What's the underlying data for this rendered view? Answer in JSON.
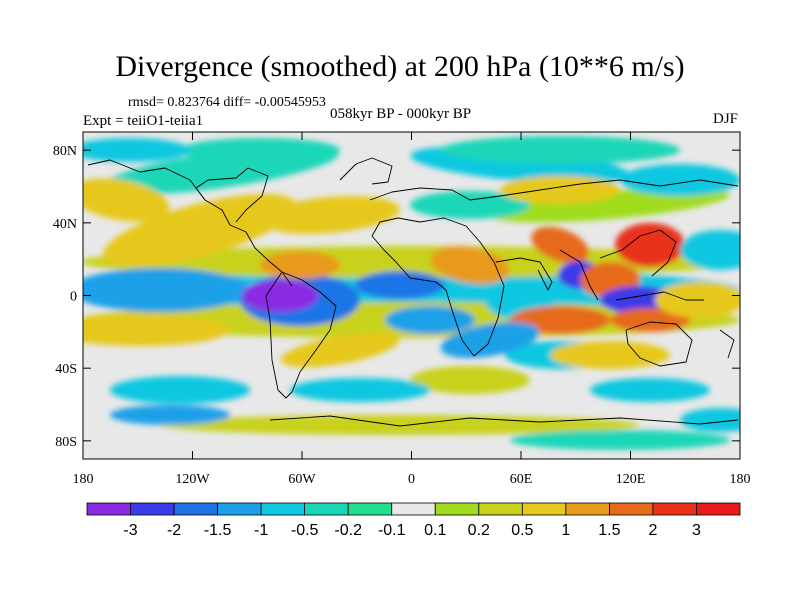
{
  "title": "Divergence (smoothed) at 200 hPa (10**6 m/s)",
  "stats": "rmsd= 0.823764 diff= -0.00545953",
  "experiment": "Expt = teiiO1-teiia1",
  "period": "058kyr BP - 000kyr BP",
  "season": "DJF",
  "map": {
    "projection": "cylindrical-equidistant",
    "lon_range": [
      -180,
      180
    ],
    "lat_range": [
      -90,
      90
    ],
    "lon_ticks": [
      {
        "value": -180,
        "label": "180"
      },
      {
        "value": -120,
        "label": "120W"
      },
      {
        "value": -60,
        "label": "60W"
      },
      {
        "value": 0,
        "label": "0"
      },
      {
        "value": 60,
        "label": "60E"
      },
      {
        "value": 120,
        "label": "120E"
      },
      {
        "value": 180,
        "label": "180"
      }
    ],
    "lat_ticks": [
      {
        "value": 80,
        "label": "80N"
      },
      {
        "value": 40,
        "label": "40N"
      },
      {
        "value": 0,
        "label": "0"
      },
      {
        "value": -40,
        "label": "40S"
      },
      {
        "value": -80,
        "label": "80S"
      }
    ]
  },
  "colorbar": {
    "colors": [
      "#8a2be2",
      "#3b3be8",
      "#1e74e6",
      "#1aa0e8",
      "#10c8e0",
      "#1ad6b8",
      "#20e090",
      "#e8e8e8",
      "#a0dc1e",
      "#c8d21e",
      "#e6c81e",
      "#e89a1a",
      "#e66a1a",
      "#e8321a",
      "#e61a1a"
    ],
    "labels": [
      "-3",
      "-2",
      "-1.5",
      "-1",
      "-0.5",
      "-0.2",
      "-0.1",
      "0.1",
      "0.2",
      "0.5",
      "1",
      "1.5",
      "2",
      "3"
    ]
  }
}
